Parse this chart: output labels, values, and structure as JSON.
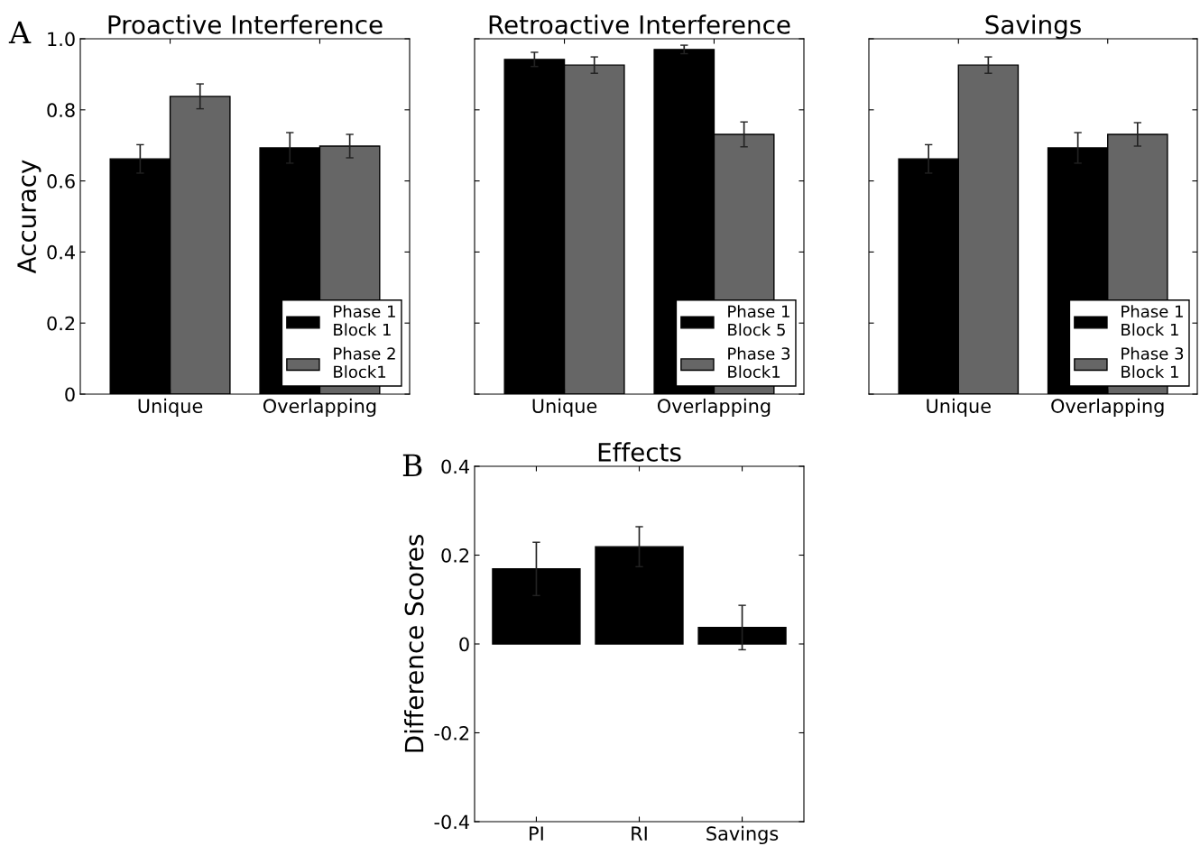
{
  "chart_data": [
    {
      "type": "bar",
      "title": "Proactive Interference",
      "ylabel": "Accuracy",
      "annotations": [
        "A"
      ],
      "categories": [
        "Unique",
        "Overlapping"
      ],
      "ylim": [
        0,
        1.0
      ],
      "yticks": [
        {
          "value": 0,
          "label": "0"
        },
        0.2,
        0.4,
        0.6,
        0.8,
        {
          "value": 1.0,
          "label": "1.0"
        }
      ],
      "legend": "bottom right",
      "series": [
        {
          "name": "Phase 1\nBlock 1",
          "color": "#000000",
          "values": [
            0.662,
            0.693
          ],
          "errors": [
            0.04,
            0.043
          ]
        },
        {
          "name": "Phase 2\nBlock1",
          "color": "#666666",
          "values": [
            0.838,
            0.698
          ],
          "errors": [
            0.035,
            0.033
          ]
        }
      ]
    },
    {
      "type": "bar",
      "title": "Retroactive Interference",
      "categories": [
        "Unique",
        "Overlapping"
      ],
      "ylim": [
        0,
        1.0
      ],
      "yticks": [
        {
          "value": 0,
          "label": null
        },
        {
          "value": 0.2,
          "label": null
        },
        {
          "value": 0.4,
          "label": null
        },
        {
          "value": 0.6,
          "label": null
        },
        {
          "value": 0.8,
          "label": null
        },
        {
          "value": 1.0,
          "label": null
        }
      ],
      "tick_labels": "x",
      "legend": "bottom right",
      "series": [
        {
          "name": "Phase 1\nBlock 5",
          "color": "#000000",
          "values": [
            0.942,
            0.97
          ],
          "errors": [
            0.02,
            0.012
          ]
        },
        {
          "name": "Phase 3\nBlock1",
          "color": "#666666",
          "values": [
            0.926,
            0.731
          ],
          "errors": [
            0.023,
            0.035
          ]
        }
      ]
    },
    {
      "type": "bar",
      "title": "Savings",
      "categories": [
        "Unique",
        "Overlapping"
      ],
      "ylim": [
        0,
        1.0
      ],
      "yticks": [
        {
          "value": 0,
          "label": null
        },
        {
          "value": 0.2,
          "label": null
        },
        {
          "value": 0.4,
          "label": null
        },
        {
          "value": 0.6,
          "label": null
        },
        {
          "value": 0.8,
          "label": null
        },
        {
          "value": 1.0,
          "label": null
        }
      ],
      "tick_labels": "x",
      "legend": "bottom right",
      "series": [
        {
          "name": "Phase 1\nBlock 1",
          "color": "#000000",
          "values": [
            0.662,
            0.693
          ],
          "errors": [
            0.04,
            0.043
          ]
        },
        {
          "name": "Phase 3\nBlock 1",
          "color": "#666666",
          "values": [
            0.926,
            0.731
          ],
          "errors": [
            0.023,
            0.033
          ]
        }
      ]
    },
    {
      "type": "bar",
      "title": "Effects",
      "ylabel": "Difference Scores",
      "annotations": [
        "B"
      ],
      "categories": [
        "PI",
        "RI",
        "Savings"
      ],
      "ylim": [
        -0.4,
        0.4
      ],
      "yticks": [
        -0.4,
        -0.2,
        {
          "value": 0,
          "label": "0"
        },
        0.2,
        0.4
      ],
      "series": [
        {
          "color": "#000000",
          "values": [
            0.169,
            0.219,
            0.037
          ],
          "errors": [
            0.06,
            0.045,
            0.05
          ]
        }
      ]
    }
  ]
}
